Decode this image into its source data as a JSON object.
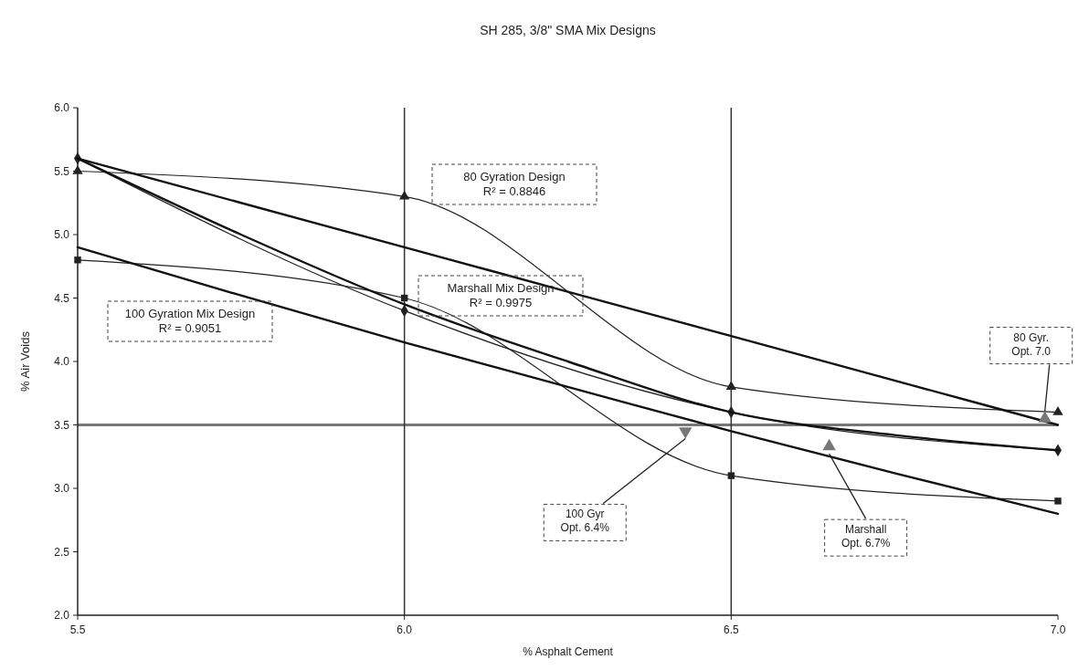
{
  "chart_data": {
    "type": "line",
    "title": "SH 285, 3/8\" SMA Mix Designs",
    "xlabel": "% Asphalt Cement",
    "ylabel": "% Air Voids",
    "xlim": [
      5.5,
      7.0
    ],
    "ylim": [
      2.0,
      6.0
    ],
    "xticks": [
      {
        "value": 5.5,
        "label": "5.5"
      },
      {
        "value": 6.0,
        "label": "6.0"
      },
      {
        "value": 6.5,
        "label": "6.5"
      },
      {
        "value": 7.0,
        "label": "7.0"
      }
    ],
    "yticks": [
      {
        "value": 2.0,
        "label": "2.0"
      },
      {
        "value": 2.5,
        "label": "2.5"
      },
      {
        "value": 3.0,
        "label": "3.0"
      },
      {
        "value": 3.5,
        "label": "3.5"
      },
      {
        "value": 4.0,
        "label": "4.0"
      },
      {
        "value": 4.5,
        "label": "4.5"
      },
      {
        "value": 5.0,
        "label": "5.0"
      },
      {
        "value": 5.5,
        "label": "5.5"
      },
      {
        "value": 6.0,
        "label": "6.0"
      }
    ],
    "grid": false,
    "line_style": "solid",
    "series": [
      {
        "color": "#222222",
        "marker": "triangle",
        "x": [
          5.5,
          6.0,
          6.5,
          7.0
        ],
        "values": [
          5.5,
          5.3,
          3.8,
          3.6
        ]
      },
      {
        "color": "#222222",
        "marker": "diamond",
        "x": [
          5.5,
          6.0,
          6.5,
          7.0
        ],
        "values": [
          5.6,
          4.4,
          3.6,
          3.3
        ]
      },
      {
        "color": "#222222",
        "marker": "square",
        "x": [
          5.5,
          6.0,
          6.5,
          7.0
        ],
        "values": [
          4.8,
          4.5,
          3.1,
          2.9
        ]
      },
      {
        "color": "#111111",
        "marker": "none",
        "x": [
          5.5,
          5.75,
          6.0,
          6.25,
          6.5,
          6.75,
          7.0
        ],
        "values": [
          5.6,
          5.25,
          4.9,
          4.55,
          4.2,
          3.85,
          3.5
        ]
      },
      {
        "color": "#111111",
        "marker": "none",
        "x": [
          5.5,
          5.75,
          6.0,
          6.25,
          6.5,
          6.75,
          7.0
        ],
        "values": [
          5.6,
          5.0,
          4.45,
          4.0,
          3.6,
          3.42,
          3.3
        ]
      },
      {
        "color": "#111111",
        "marker": "none",
        "x": [
          5.5,
          5.75,
          6.0,
          6.25,
          6.5,
          6.75,
          7.0
        ],
        "values": [
          4.9,
          4.52,
          4.15,
          3.8,
          3.45,
          3.12,
          2.8
        ]
      },
      {
        "type": "scatter",
        "color": "#777777",
        "marker": "triangle",
        "x": [
          6.43,
          6.65,
          6.98
        ],
        "values": [
          3.45,
          3.33,
          3.55
        ]
      }
    ],
    "ref_lines": [
      {
        "axis": "y",
        "value": 3.5,
        "color": "#777777"
      },
      {
        "axis": "x",
        "value": 6.0,
        "color": "#333333"
      },
      {
        "axis": "x",
        "value": 6.5,
        "color": "#333333"
      }
    ],
    "annotations": [
      "80 Gyration Design\nR² = 0.8846",
      "Marshall Mix Design\nR² = 0.9975",
      "100 Gyration Mix Design\nR² = 0.9051",
      {
        "text": "100 Gyr\nOpt. 6.4%",
        "x": 6.43,
        "y": 3.45
      },
      {
        "text": "Marshall\nOpt. 6.7%",
        "x": 6.65,
        "y": 3.33
      },
      {
        "text": "80 Gyr.\nOpt. 7.0",
        "x": 6.98,
        "y": 3.55
      }
    ]
  }
}
